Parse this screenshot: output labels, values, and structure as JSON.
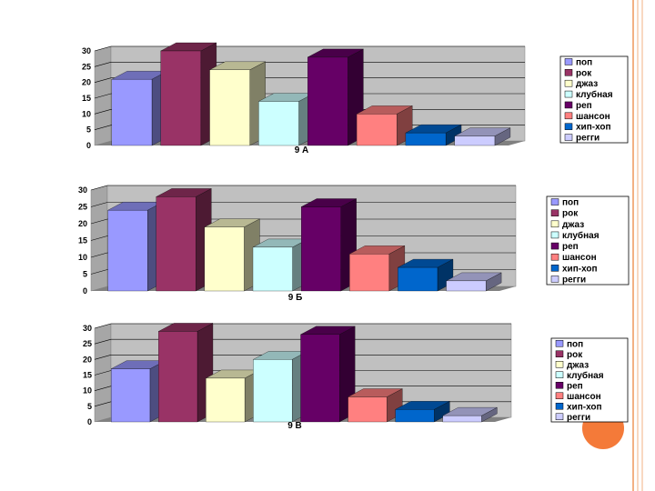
{
  "slide": {
    "border_color": "#f3b183",
    "circle_color": "#f47a39"
  },
  "colors": {
    "wall": "#c0c0c0",
    "wall_top": "#a6a6a6",
    "floor": "#808080",
    "grid": "#000000"
  },
  "chart_data": [
    {
      "type": "bar",
      "xlabel": "9 А",
      "ylim": [
        0,
        30
      ],
      "yticks": [
        0,
        5,
        10,
        15,
        20,
        25,
        30
      ],
      "legend_position": "right",
      "grid": true,
      "series": [
        {
          "name": "поп",
          "color": "#9999ff",
          "values": [
            21
          ]
        },
        {
          "name": "рок",
          "color": "#993366",
          "values": [
            30
          ]
        },
        {
          "name": "джаз",
          "color": "#ffffcc",
          "values": [
            24
          ]
        },
        {
          "name": "клубная",
          "color": "#ccffff",
          "values": [
            14
          ]
        },
        {
          "name": "реп",
          "color": "#660066",
          "values": [
            28
          ]
        },
        {
          "name": "шансон",
          "color": "#ff8080",
          "values": [
            10
          ]
        },
        {
          "name": "хип-хоп",
          "color": "#0066cc",
          "values": [
            4
          ]
        },
        {
          "name": "регги",
          "color": "#ccccff",
          "values": [
            3
          ]
        }
      ]
    },
    {
      "type": "bar",
      "xlabel": "9 Б",
      "ylim": [
        0,
        30
      ],
      "yticks": [
        0,
        5,
        10,
        15,
        20,
        25,
        30
      ],
      "legend_position": "right",
      "grid": true,
      "series": [
        {
          "name": "поп",
          "color": "#9999ff",
          "values": [
            24
          ]
        },
        {
          "name": "рок",
          "color": "#993366",
          "values": [
            28
          ]
        },
        {
          "name": "джаз",
          "color": "#ffffcc",
          "values": [
            19
          ]
        },
        {
          "name": "клубная",
          "color": "#ccffff",
          "values": [
            13
          ]
        },
        {
          "name": "реп",
          "color": "#660066",
          "values": [
            25
          ]
        },
        {
          "name": "шансон",
          "color": "#ff8080",
          "values": [
            11
          ]
        },
        {
          "name": "хип-хоп",
          "color": "#0066cc",
          "values": [
            7
          ]
        },
        {
          "name": "регги",
          "color": "#ccccff",
          "values": [
            3
          ]
        }
      ]
    },
    {
      "type": "bar",
      "xlabel": "9 В",
      "ylim": [
        0,
        30
      ],
      "yticks": [
        0,
        5,
        10,
        15,
        20,
        25,
        30
      ],
      "legend_position": "right",
      "grid": true,
      "series": [
        {
          "name": "поп",
          "color": "#9999ff",
          "values": [
            17
          ]
        },
        {
          "name": "рок",
          "color": "#993366",
          "values": [
            29
          ]
        },
        {
          "name": "джаз",
          "color": "#ffffcc",
          "values": [
            14
          ]
        },
        {
          "name": "клубная",
          "color": "#ccffff",
          "values": [
            20
          ]
        },
        {
          "name": "реп",
          "color": "#660066",
          "values": [
            28
          ]
        },
        {
          "name": "шансон",
          "color": "#ff8080",
          "values": [
            8
          ]
        },
        {
          "name": "хип-хоп",
          "color": "#0066cc",
          "values": [
            4
          ]
        },
        {
          "name": "регги",
          "color": "#ccccff",
          "values": [
            2
          ]
        }
      ]
    }
  ]
}
